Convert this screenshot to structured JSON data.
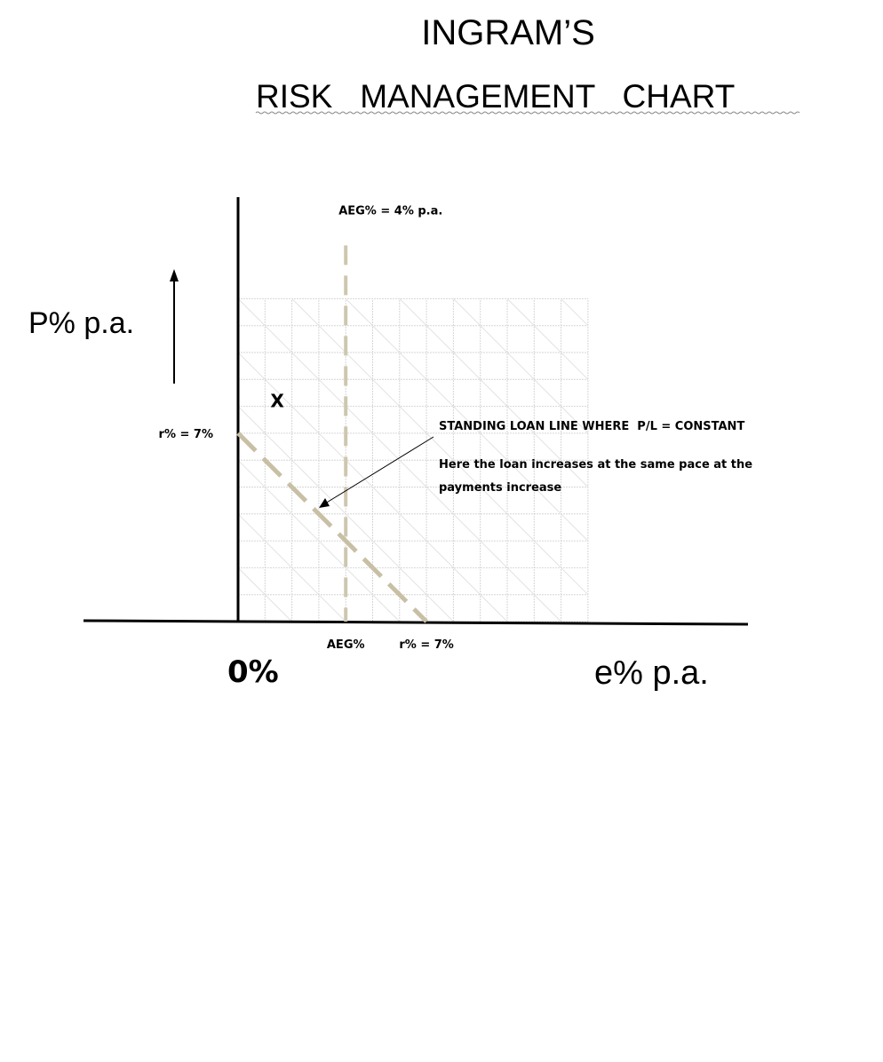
{
  "chart_data": {
    "type": "line",
    "title_line1": "INGRAM’S",
    "title_line2": "RISK   MANAGEMENT   CHART",
    "ylabel": "P% p.a.",
    "xlabel": "e% p.a.",
    "origin_label": "0%",
    "x_ticks": [
      {
        "value": 4,
        "label": "AEG%"
      },
      {
        "value": 7,
        "label": "r% = 7%"
      }
    ],
    "y_ticks": [
      {
        "value": 7,
        "label": "r% = 7%"
      }
    ],
    "series": [
      {
        "name": "STANDING LOAN LINE WHERE  P/L = CONSTANT",
        "style": "dashed",
        "color": "#c8bfa5",
        "x": [
          0,
          7
        ],
        "y": [
          7,
          0
        ]
      }
    ],
    "reference_lines": [
      {
        "label": "AEG% = 4% p.a.",
        "orientation": "vertical",
        "x": 4,
        "style": "dashed",
        "color": "#cec7af"
      }
    ],
    "markers": [
      {
        "label": "X",
        "x": 1.2,
        "y": 8.2
      }
    ],
    "annotations": [
      "STANDING LOAN LINE WHERE  P/L = CONSTANT",
      "Here the loan increases at the same pace at the",
      "payments increase"
    ],
    "axis_arrow": "up",
    "grid": true,
    "xlim": [
      0,
      13
    ],
    "ylim": [
      0,
      12
    ]
  }
}
